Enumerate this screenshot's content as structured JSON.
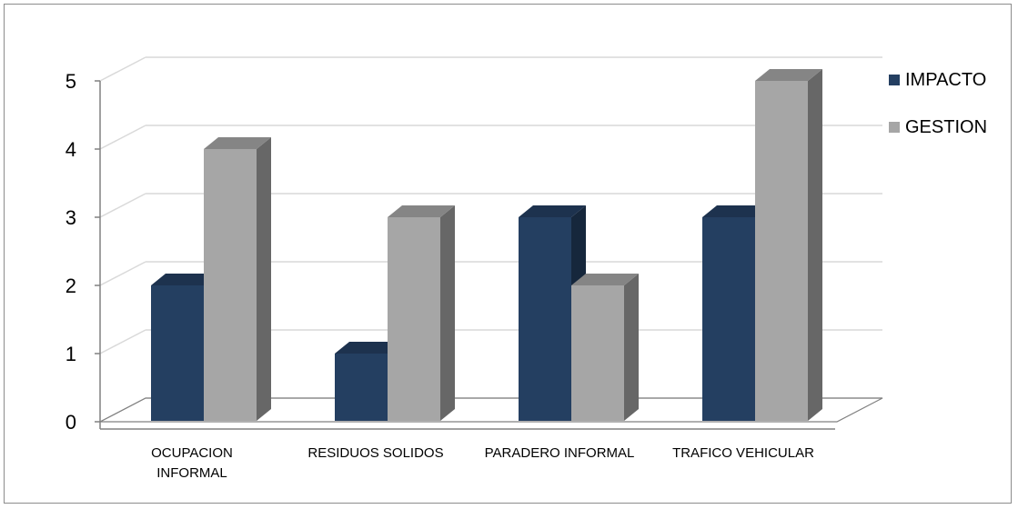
{
  "chart_data": {
    "type": "bar",
    "categories": [
      "OCUPACION INFORMAL",
      "RESIDUOS SOLIDOS",
      "PARADERO INFORMAL",
      "TRAFICO VEHICULAR"
    ],
    "series": [
      {
        "name": "IMPACTO",
        "values": [
          2,
          1,
          3,
          3
        ],
        "color": "#243f61"
      },
      {
        "name": "GESTION",
        "values": [
          4,
          3,
          2,
          5
        ],
        "color": "#a6a6a6"
      }
    ],
    "yticks": [
      "0",
      "1",
      "2",
      "3",
      "4",
      "5"
    ],
    "ylim": [
      0,
      5
    ],
    "title": "",
    "xlabel": "",
    "ylabel": "",
    "grid": true,
    "legend_position": "right"
  }
}
